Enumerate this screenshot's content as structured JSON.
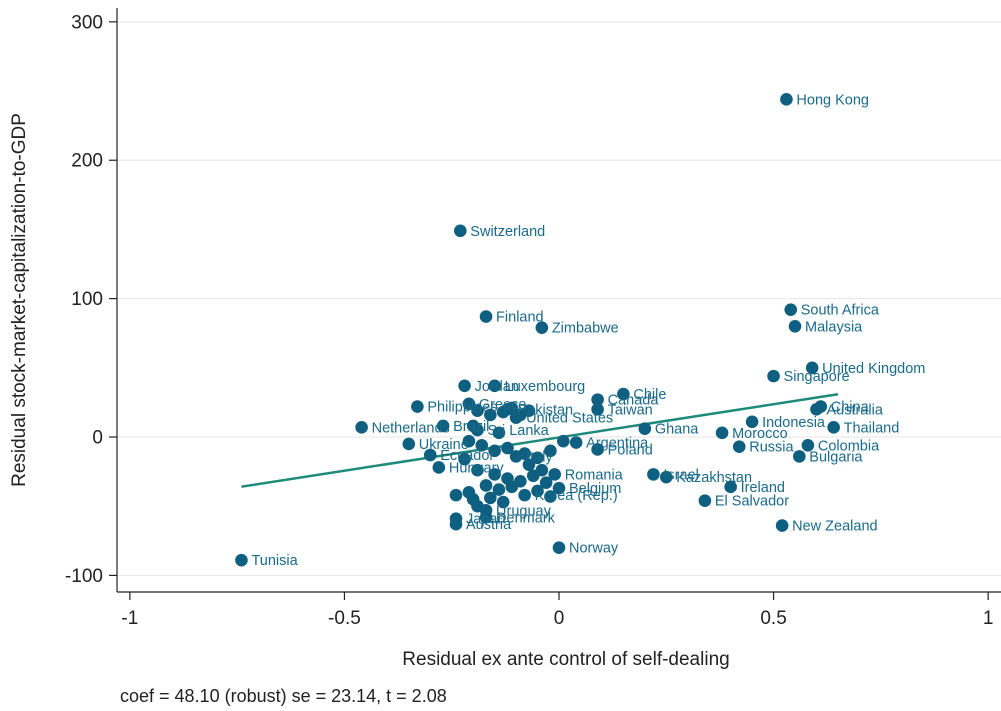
{
  "chart_data": {
    "type": "scatter",
    "xlabel": "Residual ex ante control of self-dealing",
    "ylabel": "Residual stock-market-capitalization-to-GDP",
    "xlim": [
      -1.03,
      1.03
    ],
    "ylim": [
      -112,
      310
    ],
    "xticks": [
      -1,
      -0.5,
      0,
      0.5,
      1
    ],
    "xtick_labels": [
      "-1",
      "-0.5",
      "0",
      "0.5",
      "1"
    ],
    "yticks": [
      -100,
      0,
      100,
      200,
      300
    ],
    "ytick_labels": [
      "-100",
      "0",
      "100",
      "200",
      "300"
    ],
    "grid": "horizontal",
    "colors": {
      "marker": "#0f5f80",
      "label": "#1a6a8a",
      "fit": "#1d8a7a",
      "grid": "#e6e6e6",
      "axis": "#222222"
    },
    "note": "coef = 48.10 (robust) se = 23.14, t = 2.08",
    "fit_line": {
      "x": [
        -0.74,
        0.65
      ],
      "y": [
        -35.9,
        30.9
      ]
    },
    "points": [
      {
        "label": "Hong Kong",
        "x": 0.53,
        "y": 244
      },
      {
        "label": "Switzerland",
        "x": -0.23,
        "y": 149
      },
      {
        "label": "Finland",
        "x": -0.17,
        "y": 87
      },
      {
        "label": "Zimbabwe",
        "x": -0.04,
        "y": 79
      },
      {
        "label": "South Africa",
        "x": 0.54,
        "y": 92
      },
      {
        "label": "Malaysia",
        "x": 0.55,
        "y": 80
      },
      {
        "label": "United Kingdom",
        "x": 0.59,
        "y": 50
      },
      {
        "label": "Singapore",
        "x": 0.5,
        "y": 44
      },
      {
        "label": "Jordan",
        "x": -0.22,
        "y": 37
      },
      {
        "label": "Luxembourg",
        "x": -0.15,
        "y": 37
      },
      {
        "label": "Chile",
        "x": 0.15,
        "y": 31
      },
      {
        "label": "Canada",
        "x": 0.09,
        "y": 27
      },
      {
        "label": "Taiwan",
        "x": 0.09,
        "y": 20
      },
      {
        "label": "China",
        "x": 0.61,
        "y": 22
      },
      {
        "label": "Australia",
        "x": 0.6,
        "y": 20
      },
      {
        "label": "Indonesia",
        "x": 0.45,
        "y": 11
      },
      {
        "label": "Thailand",
        "x": 0.64,
        "y": 7
      },
      {
        "label": "Philippines",
        "x": -0.33,
        "y": 22
      },
      {
        "label": "Greece",
        "x": -0.21,
        "y": 24
      },
      {
        "label": "Pakistan",
        "x": -0.12,
        "y": 20
      },
      {
        "label": "United States",
        "x": -0.1,
        "y": 14
      },
      {
        "label": "Netherlands",
        "x": -0.46,
        "y": 7
      },
      {
        "label": "Sri Lanka",
        "x": -0.19,
        "y": 5
      },
      {
        "label": "Brazil",
        "x": -0.27,
        "y": 8
      },
      {
        "label": "Ghana",
        "x": 0.2,
        "y": 6
      },
      {
        "label": "Morocco",
        "x": 0.38,
        "y": 3
      },
      {
        "label": "Argentina",
        "x": 0.04,
        "y": -4
      },
      {
        "label": "Poland",
        "x": 0.09,
        "y": -9
      },
      {
        "label": "Russia",
        "x": 0.42,
        "y": -7
      },
      {
        "label": "Colombia",
        "x": 0.58,
        "y": -6
      },
      {
        "label": "Bulgaria",
        "x": 0.56,
        "y": -14
      },
      {
        "label": "Ukraine",
        "x": -0.35,
        "y": -5
      },
      {
        "label": "Ecuador",
        "x": -0.3,
        "y": -13
      },
      {
        "label": "Italy",
        "x": -0.1,
        "y": -14
      },
      {
        "label": "Hungary",
        "x": -0.28,
        "y": -22
      },
      {
        "label": "Romania",
        "x": -0.01,
        "y": -27
      },
      {
        "label": "Israel",
        "x": 0.22,
        "y": -27
      },
      {
        "label": "Kazakhstan",
        "x": 0.25,
        "y": -29
      },
      {
        "label": "Ireland",
        "x": 0.4,
        "y": -36
      },
      {
        "label": "Belgium",
        "x": 0.0,
        "y": -37
      },
      {
        "label": "Korea (Rep.)",
        "x": -0.08,
        "y": -42
      },
      {
        "label": "El Salvador",
        "x": 0.34,
        "y": -46
      },
      {
        "label": "Uruguay",
        "x": -0.17,
        "y": -53
      },
      {
        "label": "Denmark",
        "x": -0.17,
        "y": -58
      },
      {
        "label": "Japan",
        "x": -0.24,
        "y": -59
      },
      {
        "label": "Austria",
        "x": -0.24,
        "y": -63
      },
      {
        "label": "New Zealand",
        "x": 0.52,
        "y": -64
      },
      {
        "label": "Norway",
        "x": 0.0,
        "y": -80
      },
      {
        "label": "Tunisia",
        "x": -0.74,
        "y": -89
      }
    ],
    "unlabeled_points": [
      {
        "x": -0.19,
        "y": 19
      },
      {
        "x": -0.16,
        "y": 16
      },
      {
        "x": -0.13,
        "y": 18
      },
      {
        "x": -0.11,
        "y": 21
      },
      {
        "x": -0.09,
        "y": 16
      },
      {
        "x": -0.07,
        "y": 19
      },
      {
        "x": -0.2,
        "y": 8
      },
      {
        "x": -0.14,
        "y": 3
      },
      {
        "x": -0.21,
        "y": -3
      },
      {
        "x": -0.18,
        "y": -6
      },
      {
        "x": -0.15,
        "y": -10
      },
      {
        "x": -0.12,
        "y": -8
      },
      {
        "x": -0.08,
        "y": -12
      },
      {
        "x": -0.05,
        "y": -15
      },
      {
        "x": -0.02,
        "y": -10
      },
      {
        "x": -0.22,
        "y": -16
      },
      {
        "x": -0.19,
        "y": -24
      },
      {
        "x": -0.15,
        "y": -27
      },
      {
        "x": -0.12,
        "y": -30
      },
      {
        "x": -0.09,
        "y": -32
      },
      {
        "x": -0.06,
        "y": -28
      },
      {
        "x": -0.03,
        "y": -33
      },
      {
        "x": -0.17,
        "y": -35
      },
      {
        "x": -0.14,
        "y": -38
      },
      {
        "x": -0.11,
        "y": -36
      },
      {
        "x": -0.05,
        "y": -39
      },
      {
        "x": -0.02,
        "y": -43
      },
      {
        "x": -0.24,
        "y": -42
      },
      {
        "x": -0.21,
        "y": -40
      },
      {
        "x": -0.2,
        "y": -45
      },
      {
        "x": -0.16,
        "y": -44
      },
      {
        "x": -0.13,
        "y": -47
      },
      {
        "x": -0.19,
        "y": -50
      },
      {
        "x": -0.07,
        "y": -20
      },
      {
        "x": -0.04,
        "y": -24
      },
      {
        "x": 0.01,
        "y": -3
      }
    ]
  }
}
